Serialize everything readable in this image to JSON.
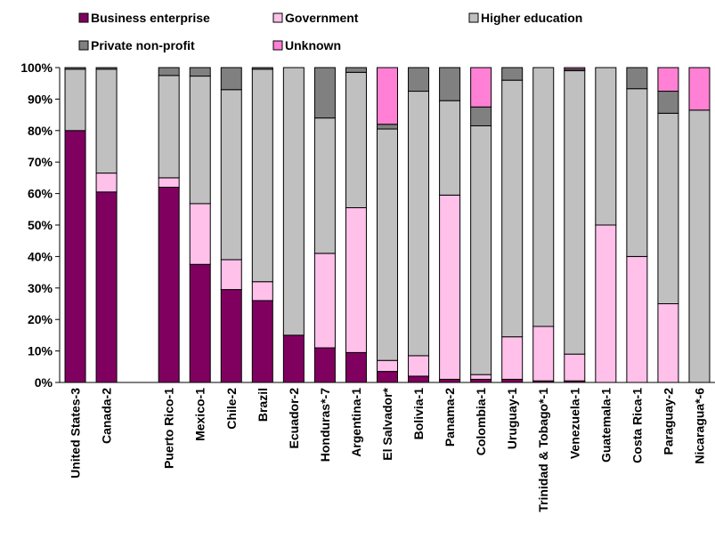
{
  "chart_data": {
    "type": "bar",
    "stacked": true,
    "orientation": "vertical",
    "title": "",
    "xlabel": "",
    "ylabel": "",
    "ylim": [
      0,
      100
    ],
    "y_ticks": [
      "0%",
      "10%",
      "20%",
      "30%",
      "40%",
      "50%",
      "60%",
      "70%",
      "80%",
      "90%",
      "100%"
    ],
    "legend_position": "top",
    "grid": false,
    "slots": [
      "United States-3",
      "Canada-2",
      "",
      "Puerto Rico-1",
      "Mexico-1",
      "Chile-2",
      "Brazil",
      "Ecuador-2",
      "Honduras*-7",
      "Argentina-1",
      "El Salvador*",
      "Bolivia-1",
      "Panama-2",
      "Colombia-1",
      "Uruguay-1",
      "Trinidad & Tobago*-1",
      "Venezuela-1",
      "Guatemala-1",
      "Costa Rica-1",
      "Paraguay-2",
      "Nicaragua*-6"
    ],
    "categories": [
      "United States-3",
      "Canada-2",
      "Puerto Rico-1",
      "Mexico-1",
      "Chile-2",
      "Brazil",
      "Ecuador-2",
      "Honduras*-7",
      "Argentina-1",
      "El Salvador*",
      "Bolivia-1",
      "Panama-2",
      "Colombia-1",
      "Uruguay-1",
      "Trinidad & Tobago*-1",
      "Venezuela-1",
      "Guatemala-1",
      "Costa Rica-1",
      "Paraguay-2",
      "Nicaragua*-6"
    ],
    "series": [
      {
        "name": "Business enterprise",
        "color": "#800060",
        "values": [
          80,
          60.5,
          62,
          37.5,
          29.5,
          26,
          15,
          11,
          9.5,
          3.5,
          2,
          1,
          1,
          1,
          0.5,
          0.5,
          0,
          0,
          0,
          0
        ]
      },
      {
        "name": "Government",
        "color": "#ffc0ea",
        "values": [
          0,
          6,
          3,
          19.3,
          9.5,
          6,
          0,
          30,
          46,
          3.5,
          6.5,
          58.5,
          1.5,
          13.5,
          17.3,
          8.5,
          50,
          40,
          25,
          0
        ]
      },
      {
        "name": "Higher education",
        "color": "#c0c0c0",
        "values": [
          19.5,
          33,
          32.5,
          40.5,
          54,
          67.5,
          85,
          43,
          43,
          73.5,
          84,
          30,
          79,
          81.5,
          82.2,
          90,
          50,
          53.3,
          60.5,
          86.5
        ]
      },
      {
        "name": "Private non-profit",
        "color": "#808080",
        "values": [
          0.5,
          0.5,
          2.5,
          2.7,
          7,
          0.5,
          0,
          16,
          1.5,
          1.5,
          7.5,
          10.5,
          6,
          4,
          0,
          0.5,
          0,
          6.7,
          7,
          0
        ]
      },
      {
        "name": "Unknown",
        "color": "#ff80d4",
        "values": [
          0,
          0,
          0,
          0,
          0,
          0,
          0,
          0,
          0,
          18,
          0,
          0,
          12.5,
          0,
          0,
          0.5,
          0,
          0,
          7.5,
          13.5
        ]
      }
    ],
    "legend_order": [
      "Business enterprise",
      "Government",
      "Higher education",
      "Private non-profit",
      "Unknown"
    ]
  }
}
